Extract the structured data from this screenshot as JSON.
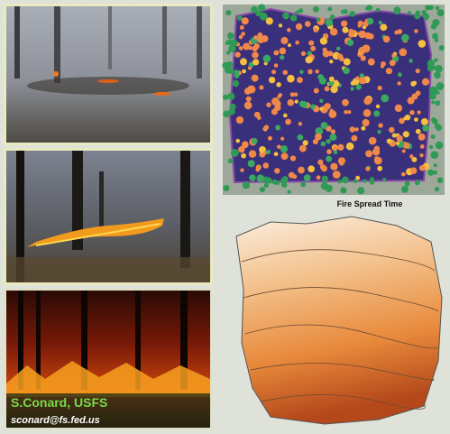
{
  "map": {
    "caption": "Fire Spread Time"
  },
  "credit": {
    "name": "S.Conard, USFS",
    "email": "sconard@fs.fed.us"
  }
}
